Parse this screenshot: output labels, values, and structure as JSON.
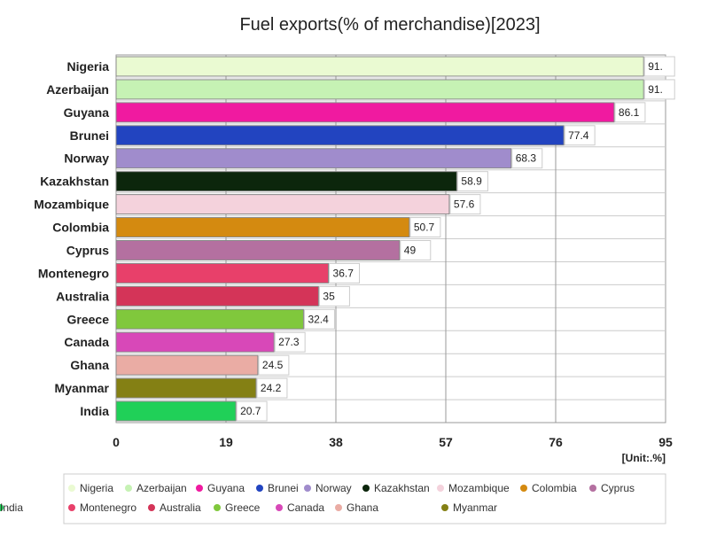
{
  "chart_data": {
    "type": "bar",
    "orientation": "horizontal",
    "title": "Fuel exports(% of merchandise)[2023]",
    "unit_label": "[Unit:.%]",
    "xlim": [
      0,
      95
    ],
    "xticks": [
      "0",
      "19",
      "38",
      "57",
      "76",
      "95"
    ],
    "grid": true,
    "legend_position": "bottom",
    "categories": [
      "Nigeria",
      "Azerbaijan",
      "Guyana",
      "Brunei",
      "Norway",
      "Kazakhstan",
      "Mozambique",
      "Colombia",
      "Cyprus",
      "Montenegro",
      "Australia",
      "Greece",
      "Canada",
      "Ghana",
      "Myanmar",
      "India"
    ],
    "values": [
      91.2,
      91.2,
      86.1,
      77.4,
      68.3,
      58.9,
      57.6,
      50.7,
      49,
      36.7,
      35,
      32.4,
      27.3,
      24.5,
      24.2,
      20.7
    ],
    "value_labels": [
      "91.",
      "91.",
      "86.1",
      "77.4",
      "68.3",
      "58.9",
      "57.6",
      "50.7",
      "49",
      "36.7",
      "35",
      "32.4",
      "27.3",
      "24.5",
      "24.2",
      "20.7"
    ],
    "colors": [
      "#eafad2",
      "#c6f2b4",
      "#f01aa0",
      "#2244c0",
      "#a08ccc",
      "#0c260c",
      "#f4d2dc",
      "#d48a10",
      "#b470a0",
      "#e8406a",
      "#d43458",
      "#80c83c",
      "#d848b8",
      "#eaaca4",
      "#848014",
      "#20d058"
    ]
  }
}
